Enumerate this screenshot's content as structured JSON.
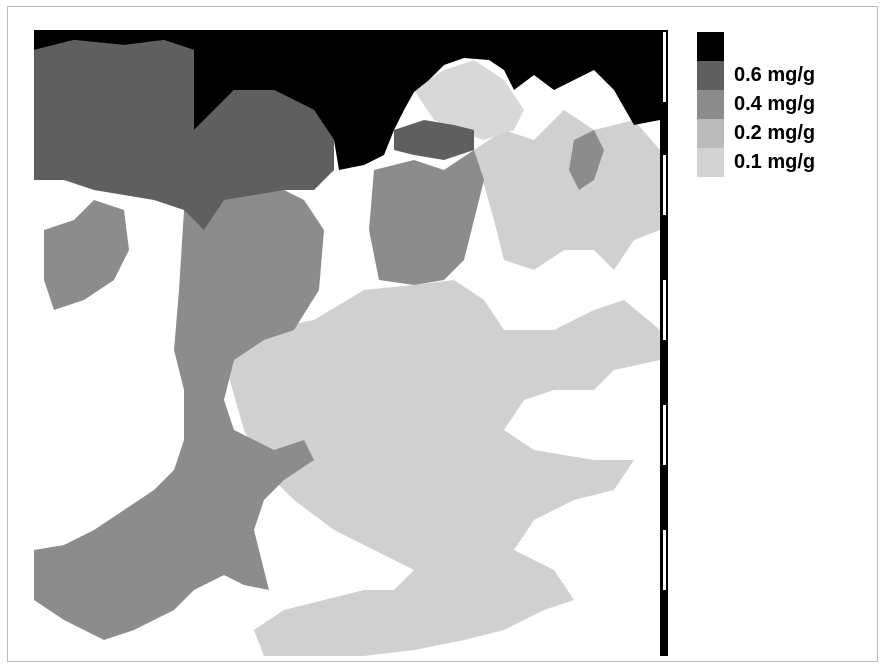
{
  "legend": [
    {
      "label": "",
      "color": "#000000"
    },
    {
      "label": "0.6 mg/g",
      "color": "#5f5f5f"
    },
    {
      "label": "0.4 mg/g",
      "color": "#8c8c8c"
    },
    {
      "label": "0.2 mg/g",
      "color": "#bababa"
    },
    {
      "label": "0.1 mg/g",
      "color": "#d3d3d3"
    }
  ],
  "colors": {
    "class_black": "#000000",
    "class_dark": "#5f5f5f",
    "class_mid": "#8c8c8c",
    "class_light": "#bababa",
    "class_lighter": "#d3d3d3",
    "background": "#ffffff"
  }
}
